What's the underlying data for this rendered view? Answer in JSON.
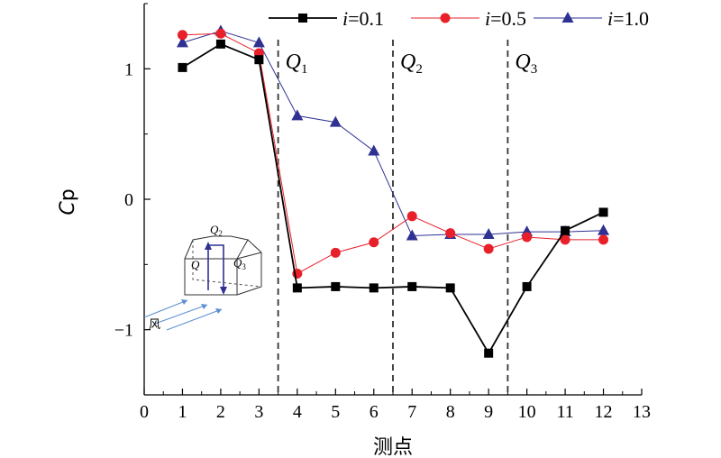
{
  "chart_data": {
    "type": "line",
    "xlabel": "测点",
    "ylabel": "Cp",
    "xlim": [
      0,
      13
    ],
    "ylim": [
      -1.5,
      1.5
    ],
    "xticks": [
      "0",
      "1",
      "2",
      "3",
      "4",
      "5",
      "6",
      "7",
      "8",
      "9",
      "10",
      "11",
      "12",
      "13"
    ],
    "yticks": [
      "−1",
      "0",
      "1"
    ],
    "x": [
      1,
      2,
      3,
      4,
      5,
      6,
      7,
      8,
      9,
      10,
      11,
      12
    ],
    "series": [
      {
        "name_var": "i",
        "name_val": "=0.1",
        "color": "#000000",
        "marker": "square",
        "values": [
          1.01,
          1.19,
          1.07,
          -0.68,
          -0.67,
          -0.68,
          -0.67,
          -0.68,
          -1.18,
          -0.67,
          -0.24,
          -0.1
        ]
      },
      {
        "name_var": "i",
        "name_val": "=0.5",
        "color": "#e8202a",
        "marker": "circle",
        "values": [
          1.26,
          1.27,
          1.12,
          -0.57,
          -0.41,
          -0.33,
          -0.13,
          -0.26,
          -0.38,
          -0.29,
          -0.31,
          -0.31
        ]
      },
      {
        "name_var": "i",
        "name_val": "=1.0",
        "color": "#2e3192",
        "marker": "triangle",
        "values": [
          1.2,
          1.29,
          1.2,
          0.64,
          0.59,
          0.37,
          -0.28,
          -0.27,
          -0.27,
          -0.25,
          -0.25,
          -0.24
        ]
      }
    ],
    "dividers": [
      {
        "x": 3.5,
        "label": "Q",
        "sub": "1"
      },
      {
        "x": 6.5,
        "label": "Q",
        "sub": "2"
      },
      {
        "x": 9.5,
        "label": "Q",
        "sub": "3"
      }
    ],
    "legend_position": "top-right",
    "grid": false
  },
  "inset": {
    "q_label": "Q",
    "q2_sub": "2",
    "q3_sub": "3",
    "wind_label": "风"
  }
}
